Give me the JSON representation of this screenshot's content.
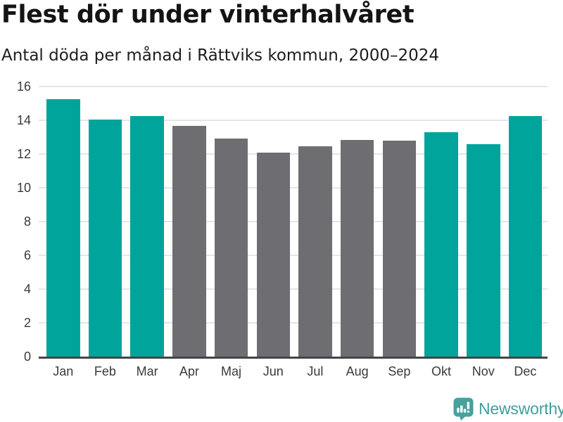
{
  "header": {
    "title": "Flest dör under vinterhalvåret",
    "subtitle": "Antal döda per månad i Rättviks kommun, 2000–2024"
  },
  "chart_data": {
    "type": "bar",
    "title": "Flest dör under vinterhalvåret",
    "subtitle": "Antal döda per månad i Rättviks kommun, 2000–2024",
    "categories": [
      "Jan",
      "Feb",
      "Mar",
      "Apr",
      "Maj",
      "Jun",
      "Jul",
      "Aug",
      "Sep",
      "Okt",
      "Nov",
      "Dec"
    ],
    "values": [
      15.25,
      14.05,
      14.25,
      13.65,
      12.9,
      12.1,
      12.45,
      12.85,
      12.8,
      13.3,
      12.6,
      14.25
    ],
    "bar_groups": [
      "winter",
      "winter",
      "winter",
      "summer",
      "summer",
      "summer",
      "summer",
      "summer",
      "summer",
      "winter",
      "winter",
      "winter"
    ],
    "group_colors": {
      "winter": "#00a49b",
      "summer": "#6e6e72"
    },
    "xlabel": "",
    "ylabel": "",
    "ylim": [
      0,
      16
    ],
    "yticks": [
      0,
      2,
      4,
      6,
      8,
      10,
      12,
      14,
      16
    ],
    "grid": true,
    "legend_position": "none",
    "axis_color": "#454545",
    "gridline_color": "#e5e5e5",
    "tick_label_color": "#3a3a3a"
  },
  "footer": {
    "brand": "Newsworthy",
    "brand_color": "#3fa09c",
    "logo_icon": "bar-chart-speech-bubble-icon"
  }
}
